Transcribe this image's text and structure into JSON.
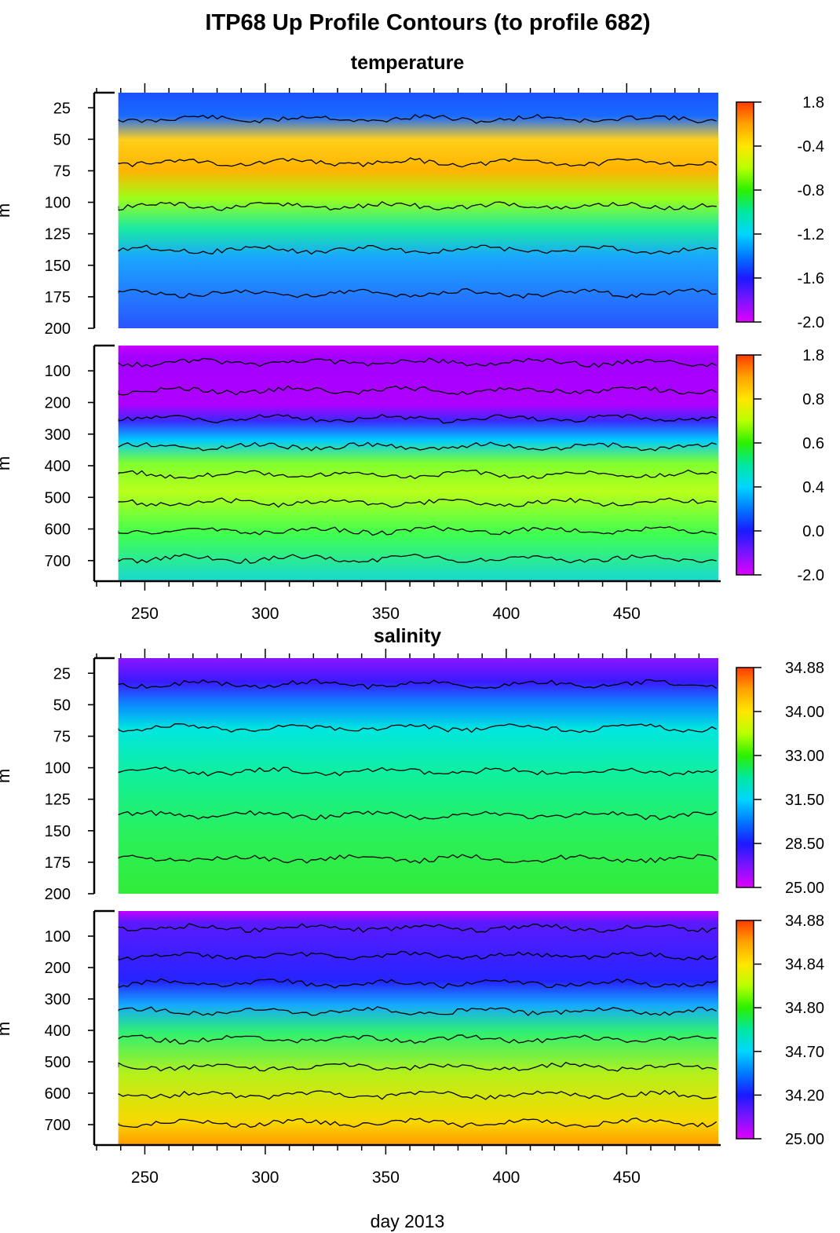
{
  "figure": {
    "title": "ITP68 Up Profile Contours (to profile 682)",
    "xlabel": "day 2013",
    "ylabel": "m",
    "xticks": [
      250,
      300,
      350,
      400,
      450
    ]
  },
  "chart_data": [
    {
      "type": "heatmap",
      "title": "temperature",
      "section": "temperature",
      "panel": "upper",
      "xlim": [
        229,
        489
      ],
      "x_start": 239,
      "ylim": [
        13,
        200
      ],
      "yticks": [
        25,
        50,
        75,
        100,
        125,
        150,
        175,
        200
      ],
      "colorbar": {
        "ticks": [
          "1.8",
          "-0.4",
          "-0.8",
          "-1.2",
          "-1.6",
          "-2.0"
        ],
        "colors": [
          "#ff3b00",
          "#ffa300",
          "#ffe600",
          "#b9ff00",
          "#2cf000",
          "#00e8a0",
          "#00d6ff",
          "#0079ff",
          "#1a1aff",
          "#7a14ff",
          "#e000ff"
        ]
      }
    },
    {
      "type": "heatmap",
      "title": "",
      "section": "temperature",
      "panel": "lower",
      "xlim": [
        229,
        489
      ],
      "x_start": 239,
      "ylim": [
        20,
        765
      ],
      "yticks": [
        100,
        200,
        300,
        400,
        500,
        600,
        700
      ],
      "colorbar": {
        "ticks": [
          "1.8",
          "0.8",
          "0.6",
          "0.4",
          "0.0",
          "-2.0"
        ],
        "colors": [
          "#ff3b00",
          "#ffa300",
          "#ffe600",
          "#b9ff00",
          "#2cf000",
          "#00e8a0",
          "#00d6ff",
          "#0079ff",
          "#1a1aff",
          "#7a14ff",
          "#e000ff"
        ]
      }
    },
    {
      "type": "heatmap",
      "title": "salinity",
      "section": "salinity",
      "panel": "upper",
      "xlim": [
        229,
        489
      ],
      "x_start": 239,
      "ylim": [
        13,
        200
      ],
      "yticks": [
        25,
        50,
        75,
        100,
        125,
        150,
        175,
        200
      ],
      "colorbar": {
        "ticks": [
          "34.88",
          "34.00",
          "33.00",
          "31.50",
          "28.50",
          "25.00"
        ],
        "colors": [
          "#ff3b00",
          "#ffa300",
          "#ffe600",
          "#b9ff00",
          "#2cf000",
          "#00e8a0",
          "#00d6ff",
          "#0079ff",
          "#1a1aff",
          "#7a14ff",
          "#e000ff"
        ]
      }
    },
    {
      "type": "heatmap",
      "title": "",
      "section": "salinity",
      "panel": "lower",
      "xlim": [
        229,
        489
      ],
      "x_start": 239,
      "ylim": [
        20,
        765
      ],
      "yticks": [
        100,
        200,
        300,
        400,
        500,
        600,
        700
      ],
      "colorbar": {
        "ticks": [
          "34.88",
          "34.84",
          "34.80",
          "34.70",
          "34.20",
          "25.00"
        ],
        "colors": [
          "#ff3b00",
          "#ffa300",
          "#ffe600",
          "#b9ff00",
          "#2cf000",
          "#00e8a0",
          "#00d6ff",
          "#0079ff",
          "#1a1aff",
          "#7a14ff",
          "#e000ff"
        ]
      }
    }
  ]
}
